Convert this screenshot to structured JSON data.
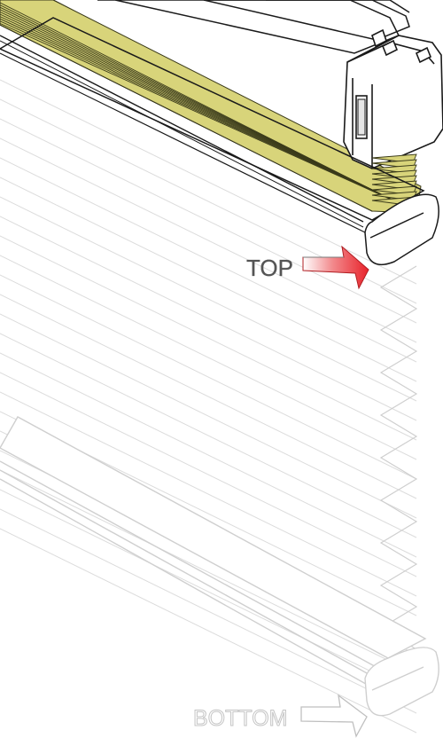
{
  "labels": {
    "top": "TOP",
    "bottom": "BOTTOM"
  },
  "colors": {
    "pleat_fabric": "#d8d47a",
    "pleat_line": "#3a3a1a",
    "top_arrow": "#e8222a",
    "outline_dark": "#1a1a1a",
    "outline_light": "#c8c8c8",
    "label_dark": "#555555",
    "label_light": "#c4c4c4"
  },
  "icons": {
    "top_arrow": "arrow-right-icon",
    "bottom_arrow": "arrow-right-icon"
  }
}
